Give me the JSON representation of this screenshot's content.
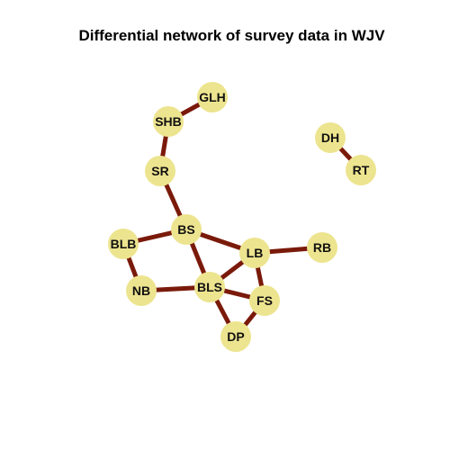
{
  "title": "Differential network of survey data in WJV",
  "colors": {
    "node_fill": "#ede48f",
    "edge": "#7a1a0a",
    "label": "#111111"
  },
  "nodes": [
    {
      "id": "GLH",
      "label": "GLH"
    },
    {
      "id": "SHB",
      "label": "SHB"
    },
    {
      "id": "SR",
      "label": "SR"
    },
    {
      "id": "BS",
      "label": "BS"
    },
    {
      "id": "BLB",
      "label": "BLB"
    },
    {
      "id": "NB",
      "label": "NB"
    },
    {
      "id": "BLS",
      "label": "BLS"
    },
    {
      "id": "LB",
      "label": "LB"
    },
    {
      "id": "RB",
      "label": "RB"
    },
    {
      "id": "FS",
      "label": "FS"
    },
    {
      "id": "DP",
      "label": "DP"
    },
    {
      "id": "DH",
      "label": "DH"
    },
    {
      "id": "RT",
      "label": "RT"
    }
  ],
  "edges": [
    {
      "source": "GLH",
      "target": "SHB"
    },
    {
      "source": "SHB",
      "target": "SR"
    },
    {
      "source": "SR",
      "target": "BS"
    },
    {
      "source": "BS",
      "target": "BLB"
    },
    {
      "source": "BS",
      "target": "LB"
    },
    {
      "source": "BS",
      "target": "BLS"
    },
    {
      "source": "BLB",
      "target": "NB"
    },
    {
      "source": "NB",
      "target": "BLS"
    },
    {
      "source": "BLS",
      "target": "LB"
    },
    {
      "source": "BLS",
      "target": "FS"
    },
    {
      "source": "BLS",
      "target": "DP"
    },
    {
      "source": "LB",
      "target": "RB"
    },
    {
      "source": "LB",
      "target": "FS"
    },
    {
      "source": "FS",
      "target": "DP"
    },
    {
      "source": "DH",
      "target": "RT"
    }
  ]
}
